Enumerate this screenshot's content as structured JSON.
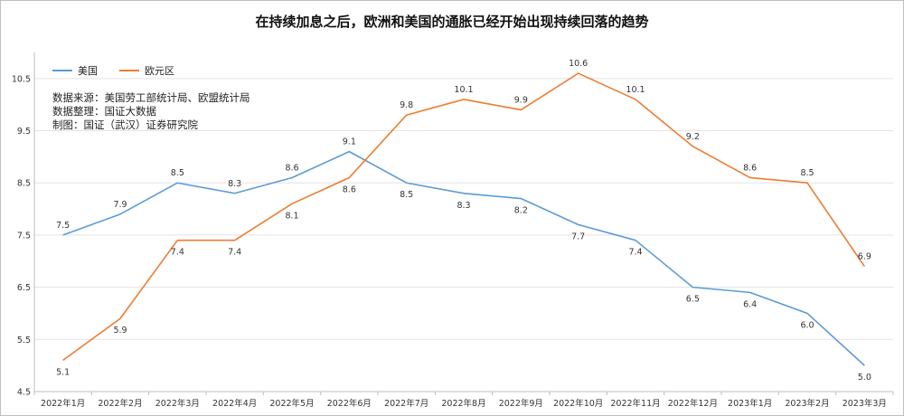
{
  "chart_data": {
    "type": "line",
    "title": "在持续加息之后，欧洲和美国的通胀已经开始出现持续回落的趋势",
    "categories": [
      "2022年1月",
      "2022年2月",
      "2022年3月",
      "2022年4月",
      "2022年5月",
      "2022年6月",
      "2022年7月",
      "2022年8月",
      "2022年9月",
      "2022年10月",
      "2022年11月",
      "2022年12月",
      "2023年1月",
      "2023年2月",
      "2023年3月"
    ],
    "series": [
      {
        "name": "美国",
        "color": "#5b9bd5",
        "values": [
          7.5,
          7.9,
          8.5,
          8.3,
          8.6,
          9.1,
          8.5,
          8.3,
          8.2,
          7.7,
          7.4,
          6.5,
          6.4,
          6.0,
          5.0
        ]
      },
      {
        "name": "欧元区",
        "color": "#ed7d31",
        "values": [
          5.1,
          5.9,
          7.4,
          7.4,
          8.1,
          8.6,
          9.8,
          10.1,
          9.9,
          10.6,
          10.1,
          9.2,
          8.6,
          8.5,
          6.9
        ]
      }
    ],
    "yticks": [
      "4.5",
      "5.5",
      "6.5",
      "7.5",
      "8.5",
      "9.5",
      "10.5"
    ],
    "ylim": [
      4.5,
      11.0
    ],
    "grid": true,
    "legend_position": "top-left",
    "xlabel": "",
    "ylabel": ""
  },
  "notes": [
    "数据来源：美国劳工部统计局、欧盟统计局",
    "数据整理：国证大数据",
    "制图：国证（武汉）证券研究院"
  ]
}
